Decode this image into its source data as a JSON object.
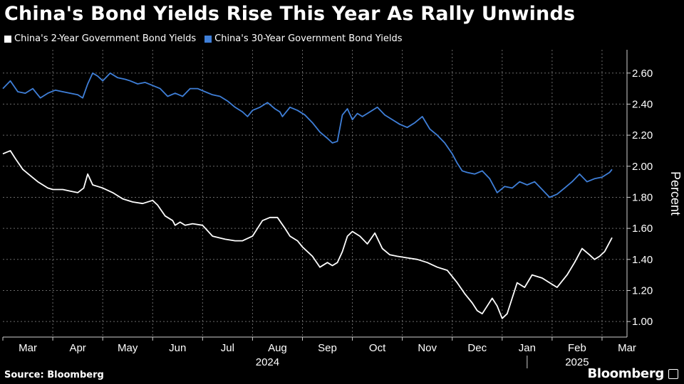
{
  "chart_data": {
    "type": "line",
    "title": "China's Bond Yields Rise This Year As Rally Unwinds",
    "ylabel": "Percent",
    "xlabel": "",
    "ylim": [
      0.9,
      2.75
    ],
    "yticks": [
      1.0,
      1.2,
      1.4,
      1.6,
      1.8,
      2.0,
      2.2,
      2.4,
      2.6
    ],
    "ytick_labels": [
      "1.00",
      "1.20",
      "1.40",
      "1.60",
      "1.80",
      "2.00",
      "2.20",
      "2.40",
      "2.60"
    ],
    "x_range": [
      0,
      12.5
    ],
    "month_ticks": [
      {
        "label": "Mar",
        "x": 0.5
      },
      {
        "label": "Apr",
        "x": 1.5
      },
      {
        "label": "May",
        "x": 2.5
      },
      {
        "label": "Jun",
        "x": 3.5
      },
      {
        "label": "Jul",
        "x": 4.5
      },
      {
        "label": "Aug",
        "x": 5.5
      },
      {
        "label": "Sep",
        "x": 6.5
      },
      {
        "label": "Oct",
        "x": 7.5
      },
      {
        "label": "Nov",
        "x": 8.5
      },
      {
        "label": "Dec",
        "x": 9.5
      },
      {
        "label": "Jan",
        "x": 10.5
      },
      {
        "label": "Feb",
        "x": 11.5
      },
      {
        "label": "Mar",
        "x": 12.5
      }
    ],
    "gridlines_x": [
      1,
      2,
      3,
      4,
      5,
      6,
      7,
      8,
      9,
      10,
      11,
      12
    ],
    "year_labels": [
      {
        "label": "2024",
        "x": 5.3
      },
      {
        "label": "2025",
        "x": 11.5
      }
    ],
    "year_divider_x": 10.5,
    "grid": true,
    "series": [
      {
        "name": "China's 2-Year Government Bond Yields",
        "color": "#ffffff",
        "x": [
          0.0,
          0.15,
          0.25,
          0.4,
          0.55,
          0.7,
          0.9,
          1.0,
          1.2,
          1.35,
          1.5,
          1.62,
          1.7,
          1.8,
          1.9,
          2.0,
          2.2,
          2.4,
          2.6,
          2.8,
          3.0,
          3.1,
          3.25,
          3.4,
          3.45,
          3.55,
          3.65,
          3.8,
          4.0,
          4.2,
          4.45,
          4.65,
          4.8,
          5.0,
          5.2,
          5.35,
          5.5,
          5.65,
          5.75,
          5.9,
          6.0,
          6.2,
          6.35,
          6.5,
          6.6,
          6.7,
          6.8,
          6.9,
          7.0,
          7.15,
          7.3,
          7.45,
          7.6,
          7.75,
          7.9,
          8.1,
          8.3,
          8.5,
          8.7,
          8.9,
          9.1,
          9.25,
          9.4,
          9.5,
          9.6,
          9.7,
          9.8,
          9.9,
          10.0,
          10.1,
          10.2,
          10.3,
          10.45,
          10.6,
          10.8,
          10.95,
          11.1,
          11.3,
          11.45,
          11.6,
          11.75,
          11.85,
          11.95,
          12.05,
          12.2
        ],
        "values": [
          2.08,
          2.1,
          2.05,
          1.98,
          1.94,
          1.9,
          1.86,
          1.85,
          1.85,
          1.84,
          1.83,
          1.86,
          1.95,
          1.88,
          1.87,
          1.86,
          1.83,
          1.79,
          1.77,
          1.76,
          1.78,
          1.75,
          1.68,
          1.65,
          1.62,
          1.64,
          1.62,
          1.63,
          1.62,
          1.55,
          1.53,
          1.52,
          1.52,
          1.55,
          1.65,
          1.67,
          1.67,
          1.6,
          1.55,
          1.52,
          1.48,
          1.42,
          1.35,
          1.38,
          1.36,
          1.38,
          1.45,
          1.55,
          1.58,
          1.55,
          1.5,
          1.57,
          1.47,
          1.43,
          1.42,
          1.41,
          1.4,
          1.38,
          1.35,
          1.33,
          1.25,
          1.18,
          1.12,
          1.07,
          1.05,
          1.1,
          1.15,
          1.1,
          1.02,
          1.05,
          1.15,
          1.25,
          1.22,
          1.3,
          1.28,
          1.25,
          1.22,
          1.3,
          1.38,
          1.47,
          1.43,
          1.4,
          1.42,
          1.45,
          1.54
        ]
      },
      {
        "name": "China's 30-Year Government Bond Yields",
        "color": "#3f7fd8",
        "x": [
          0.0,
          0.15,
          0.3,
          0.45,
          0.6,
          0.75,
          0.9,
          1.05,
          1.2,
          1.35,
          1.5,
          1.6,
          1.7,
          1.8,
          1.9,
          2.0,
          2.15,
          2.3,
          2.45,
          2.55,
          2.7,
          2.85,
          3.0,
          3.15,
          3.3,
          3.45,
          3.6,
          3.75,
          3.9,
          4.05,
          4.2,
          4.35,
          4.5,
          4.65,
          4.8,
          4.9,
          5.0,
          5.15,
          5.3,
          5.45,
          5.55,
          5.6,
          5.75,
          5.9,
          6.05,
          6.2,
          6.35,
          6.5,
          6.6,
          6.7,
          6.8,
          6.9,
          7.0,
          7.1,
          7.2,
          7.35,
          7.5,
          7.65,
          7.8,
          7.95,
          8.1,
          8.25,
          8.4,
          8.55,
          8.7,
          8.85,
          9.0,
          9.1,
          9.2,
          9.3,
          9.45,
          9.6,
          9.75,
          9.9,
          10.05,
          10.2,
          10.35,
          10.5,
          10.65,
          10.8,
          10.95,
          11.1,
          11.25,
          11.4,
          11.55,
          11.7,
          11.85,
          12.0,
          12.15,
          12.2
        ],
        "values": [
          2.5,
          2.55,
          2.48,
          2.47,
          2.5,
          2.44,
          2.47,
          2.49,
          2.48,
          2.47,
          2.46,
          2.44,
          2.53,
          2.6,
          2.58,
          2.55,
          2.6,
          2.57,
          2.56,
          2.55,
          2.53,
          2.54,
          2.52,
          2.5,
          2.45,
          2.47,
          2.45,
          2.5,
          2.5,
          2.48,
          2.46,
          2.45,
          2.42,
          2.38,
          2.35,
          2.32,
          2.36,
          2.38,
          2.41,
          2.37,
          2.35,
          2.32,
          2.38,
          2.36,
          2.33,
          2.28,
          2.22,
          2.18,
          2.15,
          2.16,
          2.33,
          2.37,
          2.3,
          2.34,
          2.32,
          2.35,
          2.38,
          2.33,
          2.3,
          2.27,
          2.25,
          2.28,
          2.32,
          2.24,
          2.2,
          2.15,
          2.08,
          2.02,
          1.97,
          1.96,
          1.95,
          1.97,
          1.92,
          1.83,
          1.87,
          1.86,
          1.9,
          1.88,
          1.9,
          1.85,
          1.8,
          1.82,
          1.86,
          1.9,
          1.95,
          1.9,
          1.92,
          1.93,
          1.96,
          1.98
        ]
      }
    ],
    "legend_placement": "top-left",
    "source": "Source: Bloomberg",
    "brand": "Bloomberg"
  }
}
